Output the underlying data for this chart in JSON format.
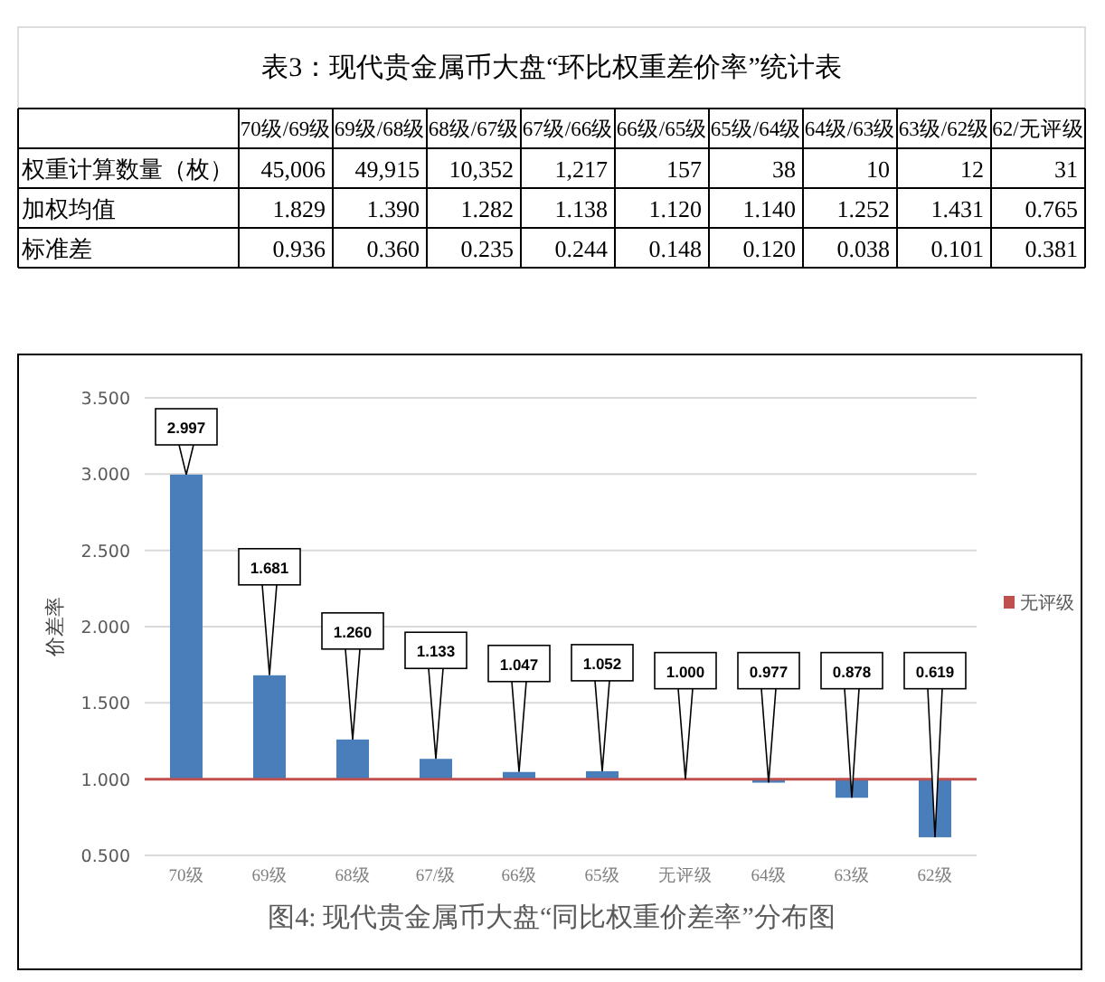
{
  "chart_data": [
    {
      "type": "other",
      "title": "表3：现代贵金属币大盘“环比权重差价率”统计表",
      "categories": [
        "70级/69级",
        "69级/68级",
        "68级/67级",
        "67级/66级",
        "66级/65级",
        "65级/64级",
        "64级/63级",
        "63级/62级",
        "62/无评级"
      ],
      "y_categories": [
        "权重计算数量（枚）",
        "加权均值",
        "标准差"
      ],
      "cell_labels": [
        [
          "45,006",
          "49,915",
          "10,352",
          "1,217",
          "157",
          "38",
          "10",
          "12",
          "31"
        ],
        [
          "1.829",
          "1.390",
          "1.282",
          "1.138",
          "1.120",
          "1.140",
          "1.252",
          "1.431",
          "0.765"
        ],
        [
          "0.936",
          "0.360",
          "0.235",
          "0.244",
          "0.148",
          "0.120",
          "0.038",
          "0.101",
          "0.381"
        ]
      ]
    },
    {
      "type": "bar",
      "title": "图4: 现代贵金属币大盘“同比权重价差率”分布图",
      "ylabel": "价差率",
      "categories": [
        "70级",
        "69级",
        "68级",
        "67/级",
        "66级",
        "65级",
        "无评级",
        "64级",
        "63级",
        "62级"
      ],
      "base": [
        1,
        1,
        1,
        1,
        1,
        1,
        1,
        1,
        1,
        1
      ],
      "values": [
        1.997,
        0.681,
        0.26,
        0.133,
        0.047,
        0.052,
        0,
        -0.023,
        -0.122,
        -0.381
      ],
      "value_labels": [
        "2.997",
        "1.681",
        "1.260",
        "1.133",
        "1.047",
        "1.052",
        "1.000",
        "0.977",
        "0.878",
        "0.619"
      ],
      "color": "#4a7ebb",
      "ylim": [
        0.5,
        3.5
      ],
      "yticks": [
        {
          "value": 0.5,
          "label": "0.500"
        },
        {
          "value": 1,
          "label": "1.000"
        },
        {
          "value": 1.5,
          "label": "1.500"
        },
        {
          "value": 2,
          "label": "2.000"
        },
        {
          "value": 2.5,
          "label": "2.500"
        },
        {
          "value": 3,
          "label": "3.000"
        },
        {
          "value": 3.5,
          "label": "3.500"
        }
      ],
      "ref_lines": [
        {
          "axis": "y",
          "value": 1,
          "label": "无评级",
          "color": "#c0504d"
        }
      ],
      "grid": "y",
      "legend": "right"
    }
  ]
}
